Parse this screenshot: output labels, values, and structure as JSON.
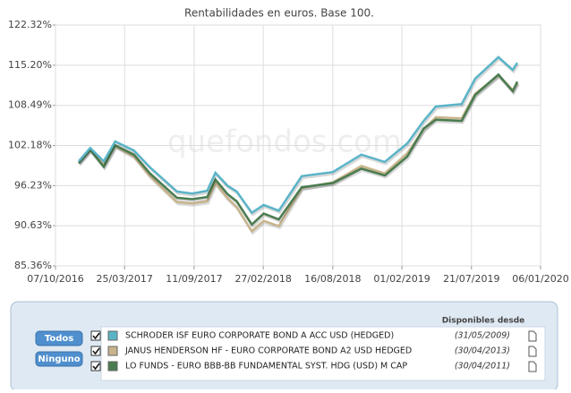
{
  "chart_data": {
    "type": "line",
    "title": "Rentabilidades en euros. Base 100.",
    "watermark": "quefondos.com",
    "x": [
      "03/12/2016",
      "31/12/2016",
      "02/02/2017",
      "02/03/2017",
      "17/04/2017",
      "26/05/2017",
      "31/07/2017",
      "06/09/2017",
      "13/10/2017",
      "02/11/2017",
      "02/12/2017",
      "24/12/2017",
      "30/01/2018",
      "28/02/2018",
      "06/04/2018",
      "01/06/2018",
      "16/08/2018",
      "25/10/2018",
      "21/12/2018",
      "14/02/2019",
      "26/03/2019",
      "25/04/2019",
      "27/06/2019",
      "30/07/2019",
      "25/09/2019",
      "30/10/2019",
      "10/11/2019"
    ],
    "series": [
      {
        "name": "SCHRODER ISF EURO CORPORATE BOND A ACC USD (HEDGED)",
        "color": "#5ab4c8",
        "values": [
          99.8,
          101.8,
          99.8,
          102.8,
          101.4,
          98.9,
          95.4,
          95.1,
          95.5,
          98.1,
          96.2,
          95.4,
          92.4,
          93.5,
          92.7,
          97.6,
          98.2,
          100.8,
          99.7,
          102.5,
          106.0,
          108.3,
          108.7,
          112.9,
          116.6,
          114.4,
          115.6
        ]
      },
      {
        "name": "JANUS HENDERSON HF - EURO CORPORATE BOND A2 USD HEDGED",
        "color": "#c8b48c",
        "values": [
          99.6,
          101.6,
          99.2,
          102.1,
          100.5,
          97.6,
          93.9,
          93.7,
          94.0,
          96.6,
          94.4,
          93.2,
          89.9,
          91.3,
          90.6,
          95.9,
          96.7,
          99.1,
          98.0,
          101.0,
          104.7,
          106.6,
          106.4,
          110.4,
          113.5,
          111.0,
          112.2
        ]
      },
      {
        "name": "LO FUNDS - EURO BBB-BB FUNDAMENTAL SYST. HDG (USD) M CAP",
        "color": "#4a7c50",
        "values": [
          99.5,
          101.5,
          99.0,
          102.2,
          100.8,
          98.0,
          94.5,
          94.3,
          94.6,
          97.1,
          95.0,
          94.0,
          90.8,
          92.3,
          91.5,
          96.0,
          96.6,
          98.7,
          97.7,
          100.5,
          104.8,
          106.2,
          106.0,
          110.2,
          113.6,
          110.8,
          112.4
        ]
      }
    ],
    "xlim": [
      "07/10/2016",
      "06/01/2020"
    ],
    "xticks": [
      "07/10/2016",
      "25/03/2017",
      "11/09/2017",
      "27/02/2018",
      "16/08/2018",
      "01/02/2019",
      "21/07/2019",
      "06/01/2020"
    ],
    "ylim": [
      85.36,
      122.32
    ],
    "yticks": [
      {
        "value": 85.36,
        "label": "85.36%"
      },
      {
        "value": 90.63,
        "label": "90.63%"
      },
      {
        "value": 96.23,
        "label": "96.23%"
      },
      {
        "value": 102.18,
        "label": "102.18%"
      },
      {
        "value": 108.49,
        "label": "108.49%"
      },
      {
        "value": 115.2,
        "label": "115.20%"
      },
      {
        "value": 122.32,
        "label": "122.32%"
      }
    ],
    "log_scale": true,
    "grid": true
  },
  "panel": {
    "buttons": [
      "Todos",
      "Ninguno"
    ],
    "header": "Disponibles desde",
    "dates": [
      "(31/05/2009)",
      "(30/04/2013)",
      "(30/04/2011)"
    ]
  }
}
